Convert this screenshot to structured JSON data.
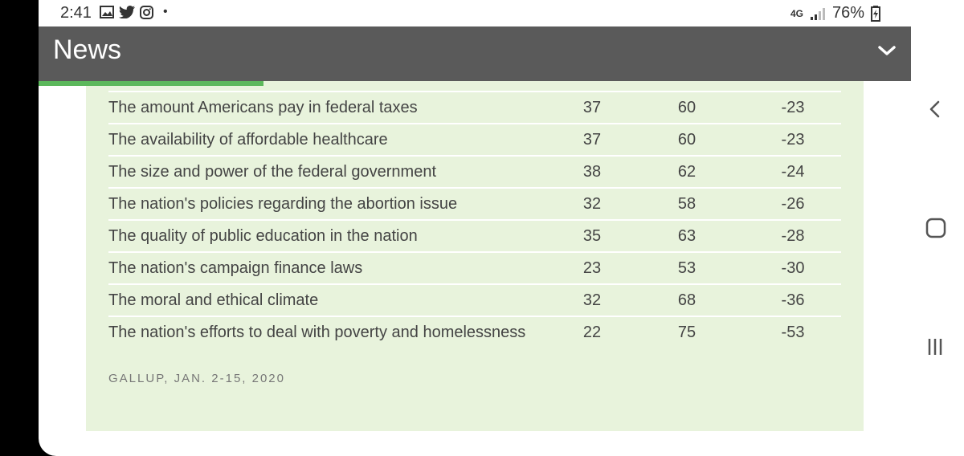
{
  "status_bar": {
    "time": "2:41",
    "network": "4G",
    "battery": "76%",
    "notification_dot": "•"
  },
  "app_bar": {
    "title": "News"
  },
  "table": {
    "rows": [
      {
        "label": "The amount Americans pay in federal taxes",
        "a": "37",
        "b": "60",
        "c": "-23"
      },
      {
        "label": "The availability of affordable healthcare",
        "a": "37",
        "b": "60",
        "c": "-23"
      },
      {
        "label": "The size and power of the federal government",
        "a": "38",
        "b": "62",
        "c": "-24"
      },
      {
        "label": "The nation's policies regarding the abortion issue",
        "a": "32",
        "b": "58",
        "c": "-26"
      },
      {
        "label": "The quality of public education in the nation",
        "a": "35",
        "b": "63",
        "c": "-28"
      },
      {
        "label": "The nation's campaign finance laws",
        "a": "23",
        "b": "53",
        "c": "-30"
      },
      {
        "label": "The moral and ethical climate",
        "a": "32",
        "b": "68",
        "c": "-36"
      },
      {
        "label": "The nation's efforts to deal with poverty and homelessness",
        "a": "22",
        "b": "75",
        "c": "-53"
      }
    ],
    "source": "GALLUP, JAN. 2-15, 2020"
  },
  "colors": {
    "app_bar": "#5a5a5a",
    "card": "#e8f3dc",
    "progress": "#5cb85c"
  },
  "icons": [
    "gallery-icon",
    "twitter-icon",
    "instagram-icon",
    "signal-icon",
    "battery-icon",
    "chevron-down-icon",
    "back-icon",
    "home-icon",
    "recents-icon"
  ]
}
